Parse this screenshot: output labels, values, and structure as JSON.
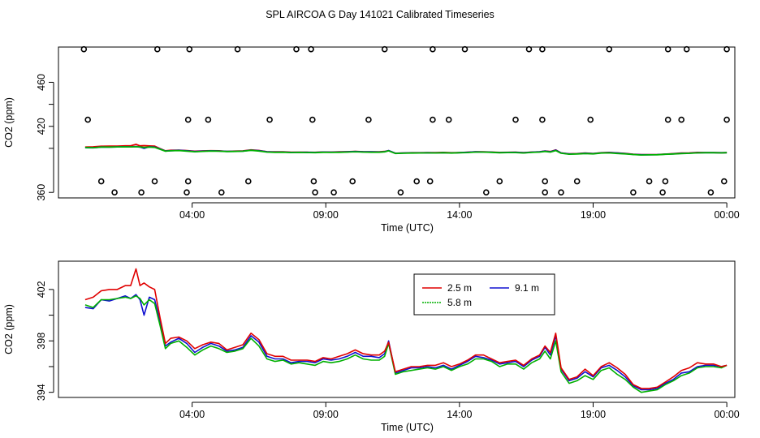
{
  "figure_title": "SPL AIRCOA G  Day 141021  Calibrated Timeseries",
  "colors": {
    "red": "#e00000",
    "green": "#00b000",
    "blue": "#1010d0",
    "axis": "#000000"
  },
  "chart_data": [
    {
      "type": "scatter+line",
      "title": "",
      "xlabel": "Time (UTC)",
      "ylabel": "CO2 (ppm)",
      "xlim_hours": [
        -1.0,
        24.3
      ],
      "ylim": [
        355,
        492
      ],
      "x_ticks": [
        {
          "h": 4,
          "label": "04:00"
        },
        {
          "h": 9,
          "label": "09:00"
        },
        {
          "h": 14,
          "label": "14:00"
        },
        {
          "h": 19,
          "label": "19:00"
        },
        {
          "h": 24,
          "label": "00:00"
        }
      ],
      "y_ticks": [
        {
          "v": 360,
          "label": "360"
        },
        {
          "v": 400,
          "label": ""
        },
        {
          "v": 420,
          "label": "420"
        },
        {
          "v": 440,
          "label": ""
        },
        {
          "v": 460,
          "label": "460"
        }
      ],
      "scatter_points": [
        [
          1.1,
          360
        ],
        [
          0.6,
          370
        ],
        [
          0.1,
          426
        ],
        [
          -0.05,
          490
        ],
        [
          2.7,
          490
        ],
        [
          3.9,
          490
        ],
        [
          4.6,
          426
        ],
        [
          5.7,
          490
        ],
        [
          3.85,
          426
        ],
        [
          2.1,
          360
        ],
        [
          3.8,
          360
        ],
        [
          3.85,
          370
        ],
        [
          2.6,
          370
        ],
        [
          5.1,
          360
        ],
        [
          6.1,
          370
        ],
        [
          6.9,
          426
        ],
        [
          7.9,
          490
        ],
        [
          8.45,
          490
        ],
        [
          8.5,
          426
        ],
        [
          8.55,
          370
        ],
        [
          8.6,
          360
        ],
        [
          9.3,
          360
        ],
        [
          10.0,
          370
        ],
        [
          10.6,
          426
        ],
        [
          11.2,
          490
        ],
        [
          11.8,
          360
        ],
        [
          12.4,
          370
        ],
        [
          12.9,
          370
        ],
        [
          13.0,
          426
        ],
        [
          13.0,
          490
        ],
        [
          13.6,
          426
        ],
        [
          14.2,
          490
        ],
        [
          15.0,
          360
        ],
        [
          15.5,
          370
        ],
        [
          16.1,
          426
        ],
        [
          16.6,
          490
        ],
        [
          17.1,
          490
        ],
        [
          17.1,
          426
        ],
        [
          17.2,
          370
        ],
        [
          17.2,
          360
        ],
        [
          17.8,
          360
        ],
        [
          18.4,
          370
        ],
        [
          18.9,
          426
        ],
        [
          19.6,
          490
        ],
        [
          20.5,
          360
        ],
        [
          21.1,
          370
        ],
        [
          21.6,
          360
        ],
        [
          21.7,
          370
        ],
        [
          21.8,
          426
        ],
        [
          21.8,
          490
        ],
        [
          22.3,
          426
        ],
        [
          22.5,
          490
        ],
        [
          23.4,
          360
        ],
        [
          23.9,
          370
        ],
        [
          24.0,
          426
        ],
        [
          24.0,
          490
        ]
      ],
      "series_summary": "Three height traces (2.5 m, 5.8 m, 9.1 m) overlapping near 394-402 ppm; same data as lower panel"
    },
    {
      "type": "line",
      "title": "",
      "xlabel": "Time (UTC)",
      "ylabel": "CO2 (ppm)",
      "xlim_hours": [
        -1.0,
        24.3
      ],
      "ylim": [
        393.6,
        404.2
      ],
      "x_ticks": [
        {
          "h": 4,
          "label": "04:00"
        },
        {
          "h": 9,
          "label": "09:00"
        },
        {
          "h": 14,
          "label": "14:00"
        },
        {
          "h": 19,
          "label": "19:00"
        },
        {
          "h": 24,
          "label": "00:00"
        }
      ],
      "y_ticks": [
        {
          "v": 394,
          "label": "394"
        },
        {
          "v": 396,
          "label": ""
        },
        {
          "v": 398,
          "label": "398"
        },
        {
          "v": 400,
          "label": ""
        },
        {
          "v": 402,
          "label": "402"
        }
      ],
      "legend": {
        "position": "upper-center",
        "entries": [
          {
            "label": "2.5 m",
            "color": "#e00000",
            "dash": ""
          },
          {
            "label": "9.1 m",
            "color": "#1010d0",
            "dash": ""
          },
          {
            "label": "5.8 m",
            "color": "#00b000",
            "dash": "2,1"
          }
        ]
      },
      "series": [
        {
          "name": "9.1 m",
          "color": "#1010d0",
          "x": [
            0.0,
            0.3,
            0.6,
            0.9,
            1.2,
            1.5,
            1.7,
            1.9,
            2.05,
            2.2,
            2.4,
            2.6,
            2.8,
            3.0,
            3.2,
            3.5,
            3.8,
            4.1,
            4.4,
            4.7,
            5.0,
            5.3,
            5.6,
            5.9,
            6.2,
            6.5,
            6.8,
            7.1,
            7.4,
            7.7,
            8.0,
            8.3,
            8.6,
            8.9,
            9.2,
            9.5,
            9.8,
            10.1,
            10.4,
            10.7,
            11.0,
            11.2,
            11.35,
            11.6,
            11.9,
            12.2,
            12.5,
            12.8,
            13.1,
            13.4,
            13.7,
            14.0,
            14.3,
            14.6,
            14.9,
            15.2,
            15.5,
            15.8,
            16.1,
            16.4,
            16.7,
            17.0,
            17.2,
            17.4,
            17.6,
            17.8,
            18.1,
            18.4,
            18.7,
            19.0,
            19.3,
            19.6,
            19.9,
            20.2,
            20.5,
            20.8,
            21.1,
            21.4,
            21.7,
            22.0,
            22.3,
            22.6,
            22.9,
            23.2,
            23.5,
            23.8,
            24.0
          ],
          "y": [
            400.6,
            400.5,
            401.2,
            401.1,
            401.3,
            401.5,
            401.3,
            401.6,
            401.2,
            400.0,
            401.4,
            401.2,
            399.5,
            397.6,
            397.9,
            398.2,
            397.8,
            397.1,
            397.5,
            397.8,
            397.6,
            397.2,
            397.3,
            397.5,
            398.4,
            397.9,
            396.8,
            396.6,
            396.6,
            396.3,
            396.4,
            396.4,
            396.3,
            396.6,
            396.5,
            396.6,
            396.8,
            397.1,
            396.8,
            396.8,
            396.7,
            397.0,
            398.0,
            395.5,
            395.7,
            395.9,
            395.9,
            396.0,
            395.9,
            396.1,
            395.8,
            396.1,
            396.4,
            396.8,
            396.7,
            396.5,
            396.2,
            396.3,
            396.4,
            396.0,
            396.5,
            396.8,
            397.5,
            396.9,
            398.4,
            395.8,
            394.9,
            395.1,
            395.6,
            395.2,
            395.9,
            396.1,
            395.7,
            395.2,
            394.5,
            394.2,
            394.2,
            394.3,
            394.7,
            395.0,
            395.5,
            395.6,
            396.0,
            396.1,
            396.1,
            396.0,
            396.1
          ]
        },
        {
          "name": "5.8 m",
          "color": "#00b000",
          "x": [
            0.0,
            0.3,
            0.6,
            0.9,
            1.2,
            1.5,
            1.7,
            1.9,
            2.05,
            2.2,
            2.4,
            2.6,
            2.8,
            3.0,
            3.2,
            3.5,
            3.8,
            4.1,
            4.4,
            4.7,
            5.0,
            5.3,
            5.6,
            5.9,
            6.2,
            6.5,
            6.8,
            7.1,
            7.4,
            7.7,
            8.0,
            8.3,
            8.6,
            8.9,
            9.2,
            9.5,
            9.8,
            10.1,
            10.4,
            10.7,
            11.0,
            11.2,
            11.35,
            11.6,
            11.9,
            12.2,
            12.5,
            12.8,
            13.1,
            13.4,
            13.7,
            14.0,
            14.3,
            14.6,
            14.9,
            15.2,
            15.5,
            15.8,
            16.1,
            16.4,
            16.7,
            17.0,
            17.2,
            17.4,
            17.6,
            17.8,
            18.1,
            18.4,
            18.7,
            19.0,
            19.3,
            19.6,
            19.9,
            20.2,
            20.5,
            20.8,
            21.1,
            21.4,
            21.7,
            22.0,
            22.3,
            22.6,
            22.9,
            23.2,
            23.5,
            23.8,
            24.0
          ],
          "y": [
            400.8,
            400.6,
            401.2,
            401.2,
            401.3,
            401.4,
            401.3,
            401.5,
            401.3,
            400.8,
            401.2,
            400.9,
            399.2,
            397.4,
            397.8,
            398.0,
            397.5,
            396.9,
            397.3,
            397.6,
            397.4,
            397.1,
            397.2,
            397.4,
            398.2,
            397.6,
            396.6,
            396.4,
            396.5,
            396.2,
            396.3,
            396.2,
            396.1,
            396.4,
            396.3,
            396.4,
            396.6,
            396.9,
            396.6,
            396.5,
            396.5,
            396.8,
            397.8,
            395.4,
            395.6,
            395.7,
            395.8,
            395.9,
            395.8,
            396.0,
            395.7,
            396.0,
            396.2,
            396.6,
            396.6,
            396.4,
            396.0,
            396.2,
            396.2,
            395.8,
            396.3,
            396.6,
            397.2,
            396.6,
            398.0,
            395.6,
            394.7,
            394.9,
            395.3,
            395.0,
            395.7,
            395.9,
            395.4,
            395.0,
            394.4,
            394.0,
            394.1,
            394.2,
            394.6,
            394.9,
            395.3,
            395.5,
            395.9,
            396.0,
            396.0,
            395.9,
            396.1
          ]
        },
        {
          "name": "2.5 m",
          "color": "#e00000",
          "x": [
            0.0,
            0.3,
            0.6,
            0.9,
            1.2,
            1.5,
            1.7,
            1.9,
            2.05,
            2.2,
            2.4,
            2.6,
            2.8,
            3.0,
            3.2,
            3.5,
            3.8,
            4.1,
            4.4,
            4.7,
            5.0,
            5.3,
            5.6,
            5.9,
            6.2,
            6.5,
            6.8,
            7.1,
            7.4,
            7.7,
            8.0,
            8.3,
            8.6,
            8.9,
            9.2,
            9.5,
            9.8,
            10.1,
            10.4,
            10.7,
            11.0,
            11.2,
            11.35,
            11.6,
            11.9,
            12.2,
            12.5,
            12.8,
            13.1,
            13.4,
            13.7,
            14.0,
            14.3,
            14.6,
            14.9,
            15.2,
            15.5,
            15.8,
            16.1,
            16.4,
            16.7,
            17.0,
            17.2,
            17.4,
            17.6,
            17.8,
            18.1,
            18.4,
            18.7,
            19.0,
            19.3,
            19.6,
            19.9,
            20.2,
            20.5,
            20.8,
            21.1,
            21.4,
            21.7,
            22.0,
            22.3,
            22.6,
            22.9,
            23.2,
            23.5,
            23.8,
            24.0
          ],
          "y": [
            401.2,
            401.4,
            401.9,
            402.0,
            402.0,
            402.3,
            402.3,
            403.6,
            402.3,
            402.5,
            402.2,
            402.0,
            399.8,
            397.8,
            398.2,
            398.3,
            398.0,
            397.4,
            397.7,
            397.9,
            397.8,
            397.3,
            397.5,
            397.7,
            398.6,
            398.1,
            397.0,
            396.8,
            396.8,
            396.5,
            396.5,
            396.5,
            396.4,
            396.7,
            396.6,
            396.8,
            397.0,
            397.3,
            397.0,
            396.9,
            396.9,
            397.2,
            397.9,
            395.6,
            395.8,
            396.0,
            396.0,
            396.1,
            396.1,
            396.3,
            396.0,
            396.2,
            396.5,
            396.9,
            396.9,
            396.6,
            396.3,
            396.4,
            396.5,
            396.1,
            396.6,
            396.9,
            397.6,
            397.1,
            398.6,
            395.9,
            395.0,
            395.2,
            395.8,
            395.3,
            396.0,
            396.3,
            395.9,
            395.4,
            394.6,
            394.3,
            394.3,
            394.4,
            394.8,
            395.2,
            395.7,
            395.9,
            396.3,
            396.2,
            396.2,
            396.0,
            396.1
          ]
        }
      ]
    }
  ]
}
